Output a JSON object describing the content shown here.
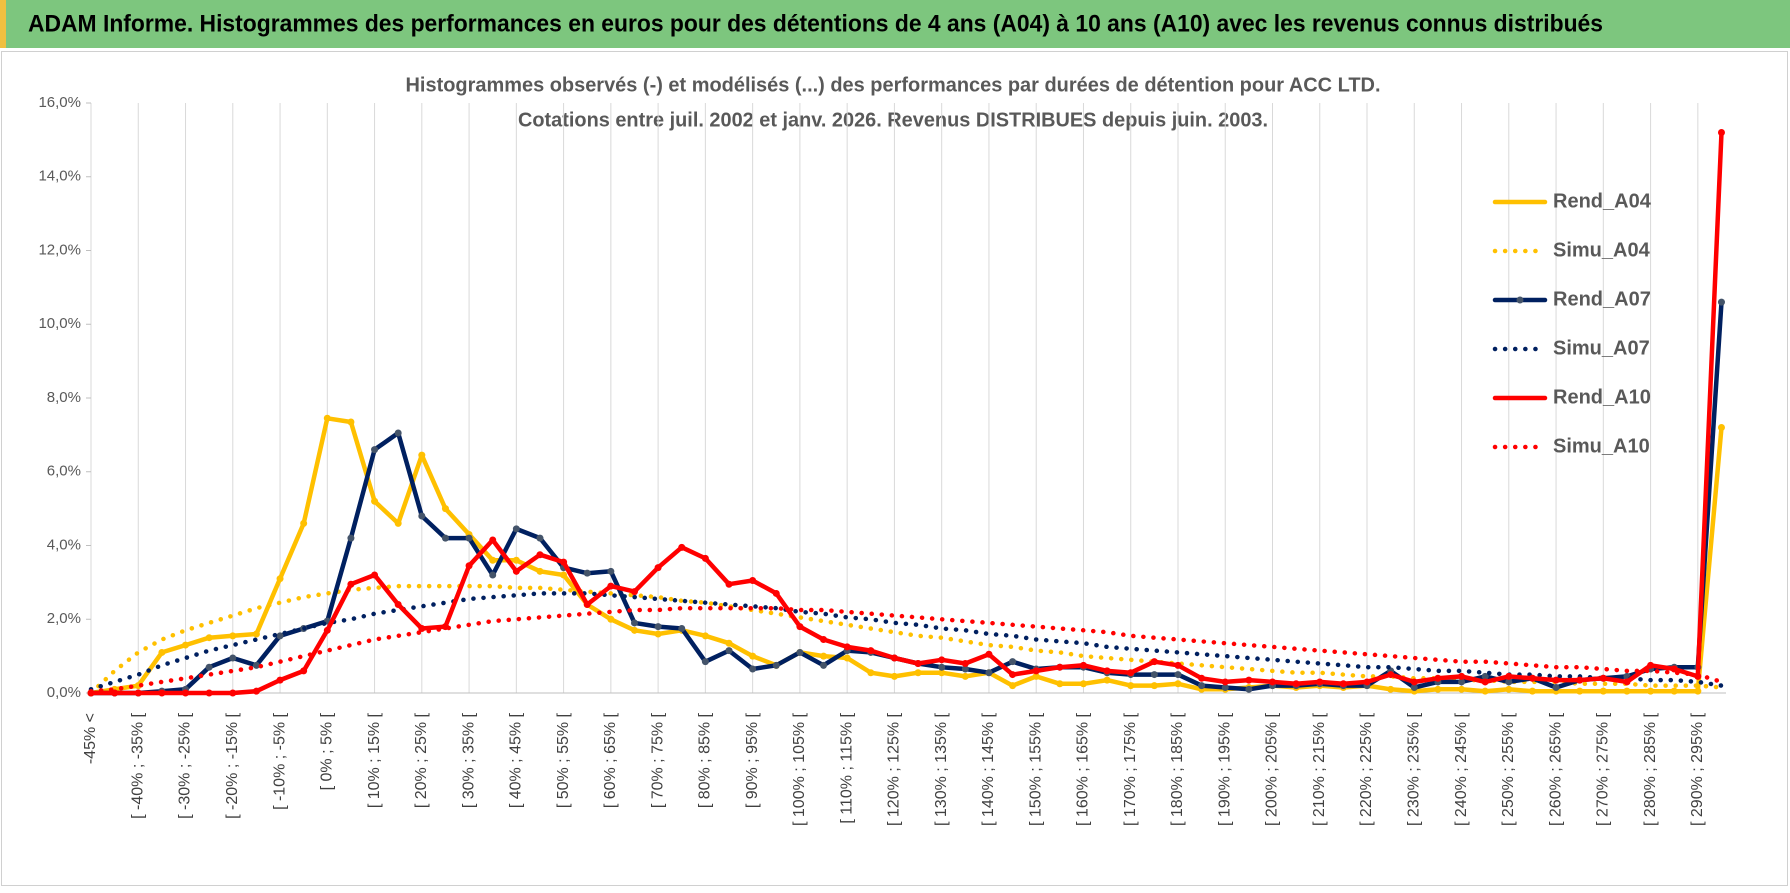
{
  "header": {
    "title": "ADAM Informe. Histogrammes des performances en euros pour des détentions de 4 ans (A04) à 10 ans (A10) avec les revenus connus distribués"
  },
  "chart_data": {
    "type": "line",
    "title": "Histogrammes observés (-) et modélisés (...) des performances par durées de détention pour ACC LTD.",
    "subtitle": "Cotations entre juil. 2002 et janv. 2026. Revenus DISTRIBUES depuis juin. 2003.",
    "categories": [
      "-45% <",
      null,
      "[ -40% ; -35% [",
      null,
      "[ -30% ; -25% [",
      null,
      "[ -20% ; -15% [",
      null,
      "[ -10% ; -5% [",
      null,
      "[ 0% ; 5% [",
      null,
      "[ 10% ; 15% [",
      null,
      "[ 20% ; 25% [",
      null,
      "[ 30% ; 35% [",
      null,
      "[ 40% ; 45% [",
      null,
      "[ 50% ; 55% [",
      null,
      "[ 60% ; 65% [",
      null,
      "[ 70% ; 75% [",
      null,
      "[ 80% ; 85% [",
      null,
      "[ 90% ; 95% [",
      null,
      "[ 100% ; 105% [",
      null,
      "[ 110% ; 115% [",
      null,
      "[ 120% ; 125% [",
      null,
      "[ 130% ; 135% [",
      null,
      "[ 140% ; 145% [",
      null,
      "[ 150% ; 155% [",
      null,
      "[ 160% ; 165% [",
      null,
      "[ 170% ; 175% [",
      null,
      "[ 180% ; 185% [",
      null,
      "[ 190% ; 195% [",
      null,
      "[ 200% ; 205% [",
      null,
      "[ 210% ; 215% [",
      null,
      "[ 220% ; 225% [",
      null,
      "[ 230% ; 235% [",
      null,
      "[ 240% ; 245% [",
      null,
      "[ 250% ; 255% [",
      null,
      "[ 260% ; 265% [",
      null,
      "[ 270% ; 275% [",
      null,
      "[ 280% ; 285% [",
      null,
      "[ 290% ; 295% [",
      null
    ],
    "series": [
      {
        "name": "Rend_A04",
        "color": "#FFC000",
        "dash": "solid",
        "markers": true,
        "values": [
          0,
          0.1,
          0.2,
          1.1,
          1.3,
          1.5,
          1.55,
          1.6,
          3.1,
          4.6,
          7.45,
          7.35,
          5.2,
          4.6,
          6.45,
          5.0,
          4.3,
          3.6,
          3.6,
          3.3,
          3.2,
          2.4,
          2.0,
          1.7,
          1.6,
          1.7,
          1.55,
          1.35,
          1.0,
          0.75,
          1.1,
          1.0,
          0.95,
          0.55,
          0.45,
          0.55,
          0.55,
          0.45,
          0.55,
          0.2,
          0.45,
          0.25,
          0.25,
          0.35,
          0.2,
          0.2,
          0.25,
          0.1,
          0.1,
          0.15,
          0.2,
          0.15,
          0.2,
          0.15,
          0.2,
          0.1,
          0.05,
          0.1,
          0.1,
          0.05,
          0.1,
          0.05,
          0.05,
          0.05,
          0.05,
          0.05,
          0.05,
          0.05,
          0.05,
          7.2
        ]
      },
      {
        "name": "Simu_A04",
        "color": "#FFC000",
        "dash": "dotted",
        "markers": false,
        "values": [
          0,
          0.6,
          1.1,
          1.45,
          1.7,
          1.9,
          2.1,
          2.3,
          2.45,
          2.6,
          2.7,
          2.8,
          2.85,
          2.9,
          2.9,
          2.9,
          2.9,
          2.9,
          2.85,
          2.85,
          2.8,
          2.75,
          2.7,
          2.65,
          2.6,
          2.5,
          2.45,
          2.35,
          2.25,
          2.15,
          2.05,
          1.95,
          1.85,
          1.75,
          1.65,
          1.55,
          1.5,
          1.4,
          1.3,
          1.25,
          1.15,
          1.1,
          1.0,
          0.95,
          0.9,
          0.85,
          0.8,
          0.75,
          0.7,
          0.65,
          0.6,
          0.55,
          0.55,
          0.5,
          0.45,
          0.45,
          0.4,
          0.4,
          0.35,
          0.35,
          0.3,
          0.3,
          0.3,
          0.25,
          0.25,
          0.25,
          0.2,
          0.2,
          0.2,
          0.15
        ]
      },
      {
        "name": "Rend_A07",
        "color": "#002060",
        "dash": "solid",
        "markers": true,
        "values": [
          0,
          0,
          0,
          0.05,
          0.1,
          0.7,
          0.95,
          0.75,
          1.55,
          1.75,
          1.95,
          4.2,
          6.6,
          7.05,
          4.8,
          4.2,
          4.2,
          3.2,
          4.45,
          4.2,
          3.4,
          3.25,
          3.3,
          1.9,
          1.8,
          1.75,
          0.85,
          1.15,
          0.65,
          0.75,
          1.1,
          0.75,
          1.15,
          1.1,
          0.95,
          0.8,
          0.7,
          0.65,
          0.55,
          0.85,
          0.65,
          0.7,
          0.7,
          0.55,
          0.5,
          0.5,
          0.5,
          0.2,
          0.15,
          0.1,
          0.2,
          0.2,
          0.25,
          0.2,
          0.2,
          0.6,
          0.15,
          0.3,
          0.3,
          0.45,
          0.3,
          0.4,
          0.15,
          0.35,
          0.4,
          0.45,
          0.65,
          0.7,
          0.7,
          10.6
        ]
      },
      {
        "name": "Simu_A07",
        "color": "#002060",
        "dash": "dotted",
        "markers": false,
        "values": [
          0.1,
          0.3,
          0.5,
          0.75,
          0.95,
          1.15,
          1.3,
          1.45,
          1.6,
          1.75,
          1.9,
          2.0,
          2.15,
          2.25,
          2.35,
          2.45,
          2.55,
          2.6,
          2.65,
          2.7,
          2.7,
          2.7,
          2.65,
          2.6,
          2.55,
          2.5,
          2.45,
          2.4,
          2.35,
          2.3,
          2.2,
          2.15,
          2.05,
          2.0,
          1.9,
          1.85,
          1.75,
          1.7,
          1.6,
          1.55,
          1.45,
          1.4,
          1.35,
          1.25,
          1.2,
          1.15,
          1.1,
          1.05,
          1.0,
          0.95,
          0.9,
          0.85,
          0.8,
          0.75,
          0.7,
          0.7,
          0.65,
          0.6,
          0.6,
          0.55,
          0.5,
          0.5,
          0.45,
          0.45,
          0.4,
          0.4,
          0.35,
          0.35,
          0.3,
          0.2
        ]
      },
      {
        "name": "Rend_A10",
        "color": "#FF0000",
        "dash": "solid",
        "markers": true,
        "values": [
          0,
          0,
          0,
          0,
          0,
          0,
          0,
          0.05,
          0.35,
          0.6,
          1.7,
          2.95,
          3.2,
          2.4,
          1.75,
          1.8,
          3.45,
          4.15,
          3.3,
          3.75,
          3.55,
          2.4,
          2.9,
          2.75,
          3.4,
          3.95,
          3.65,
          2.95,
          3.05,
          2.7,
          1.8,
          1.45,
          1.25,
          1.15,
          0.95,
          0.8,
          0.9,
          0.8,
          1.05,
          0.5,
          0.6,
          0.7,
          0.75,
          0.6,
          0.55,
          0.85,
          0.75,
          0.4,
          0.3,
          0.35,
          0.3,
          0.25,
          0.3,
          0.25,
          0.3,
          0.5,
          0.3,
          0.4,
          0.45,
          0.3,
          0.45,
          0.4,
          0.35,
          0.35,
          0.4,
          0.3,
          0.75,
          0.65,
          0.45,
          15.2
        ]
      },
      {
        "name": "Simu_A10",
        "color": "#FF0000",
        "dash": "dotted",
        "markers": false,
        "values": [
          0.05,
          0.1,
          0.2,
          0.3,
          0.4,
          0.5,
          0.6,
          0.7,
          0.85,
          1.0,
          1.15,
          1.3,
          1.45,
          1.55,
          1.65,
          1.75,
          1.85,
          1.95,
          2.0,
          2.05,
          2.1,
          2.15,
          2.2,
          2.25,
          2.25,
          2.3,
          2.3,
          2.3,
          2.3,
          2.3,
          2.25,
          2.25,
          2.2,
          2.15,
          2.1,
          2.05,
          2.0,
          1.95,
          1.9,
          1.85,
          1.8,
          1.75,
          1.7,
          1.65,
          1.55,
          1.5,
          1.45,
          1.4,
          1.35,
          1.3,
          1.25,
          1.2,
          1.15,
          1.1,
          1.05,
          1.0,
          0.95,
          0.9,
          0.85,
          0.85,
          0.8,
          0.75,
          0.7,
          0.7,
          0.65,
          0.6,
          0.6,
          0.55,
          0.5,
          0.3
        ]
      }
    ],
    "ylim": [
      0,
      16
    ],
    "yticks": [
      {
        "value": 0,
        "label": "0,0%"
      },
      {
        "value": 2,
        "label": "2,0%"
      },
      {
        "value": 4,
        "label": "4,0%"
      },
      {
        "value": 6,
        "label": "6,0%"
      },
      {
        "value": 8,
        "label": "8,0%"
      },
      {
        "value": 10,
        "label": "10,0%"
      },
      {
        "value": 12,
        "label": "12,0%"
      },
      {
        "value": 14,
        "label": "14,0%"
      },
      {
        "value": 16,
        "label": "16,0%"
      }
    ],
    "legend": "right"
  }
}
